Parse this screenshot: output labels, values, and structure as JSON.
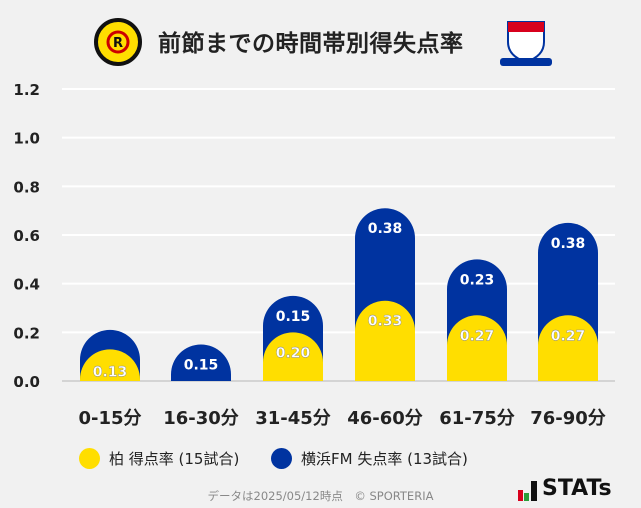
{
  "title": "前節までの時間帯別得失点率",
  "logos": {
    "left": "KASHIWA REYSOL",
    "right": "Yokohama F·Marinos"
  },
  "chart_data": {
    "type": "bar",
    "stacked": true,
    "categories": [
      "0-15分",
      "16-30分",
      "31-45分",
      "46-60分",
      "61-75分",
      "76-90分"
    ],
    "series": [
      {
        "name": "柏 得点率 (15試合)",
        "color": "#ffde00",
        "values": [
          0.13,
          0,
          0.2,
          0.33,
          0.27,
          0.27
        ]
      },
      {
        "name": "横浜FM 失点率 (13試合)",
        "color": "#0033a0",
        "values": [
          0.08,
          0.15,
          0.15,
          0.38,
          0.23,
          0.38
        ]
      }
    ],
    "labels": [
      [
        "0.13",
        null
      ],
      [
        null,
        "0.15"
      ],
      [
        "0.20",
        "0.15"
      ],
      [
        "0.33",
        "0.38"
      ],
      [
        "0.27",
        "0.23"
      ],
      [
        "0.27",
        "0.38"
      ]
    ],
    "yticks": [
      "0.0",
      "0.2",
      "0.4",
      "0.6",
      "0.8",
      "1.0",
      "1.2"
    ],
    "ylim": [
      0,
      1.2
    ],
    "grid": true,
    "legend": "bottom"
  },
  "footer": "データは2025/05/12時点　© SPORTERIA",
  "brand": "STATs"
}
